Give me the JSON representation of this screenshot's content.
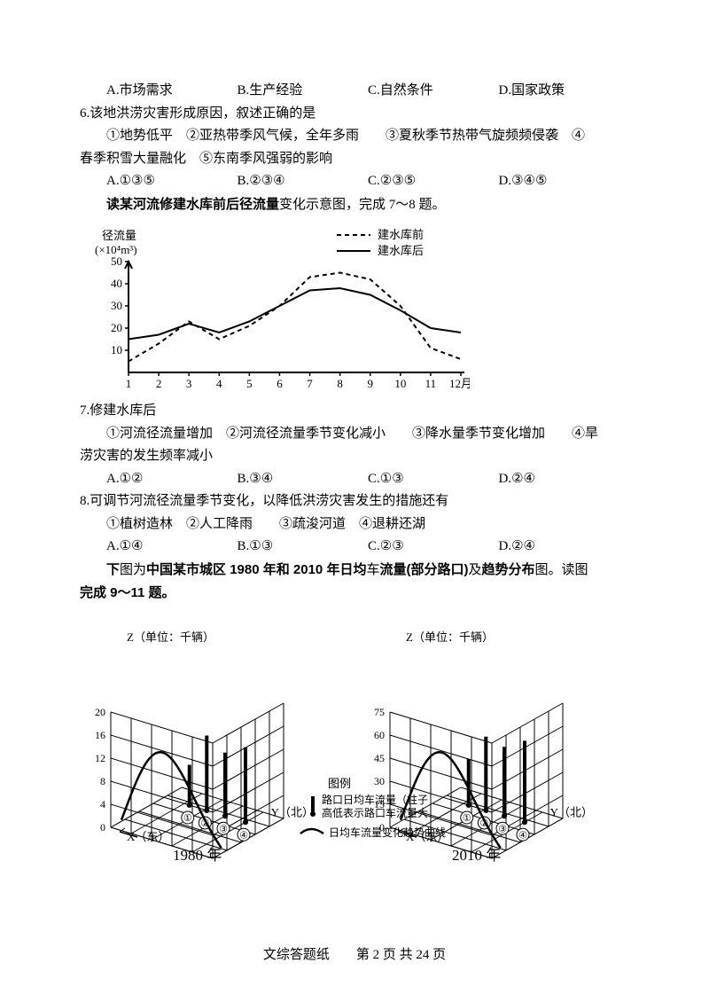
{
  "q5": {
    "choices": [
      "A.市场需求",
      "B.生产经验",
      "C.自然条件",
      "D.国家政策"
    ]
  },
  "q6": {
    "stem": "6.该地洪涝灾害形成原因，叙述正确的是",
    "items_line1": "①地势低平　②亚热带季风气候，全年多雨　　③夏秋季节热带气旋频频侵袭　④",
    "items_line2": "春季积雪大量融化　⑤东南季风强弱的影响",
    "choices": [
      "A.①③⑤",
      "B.②③④",
      "C.②③⑤",
      "D.③④⑤"
    ]
  },
  "lead1": {
    "pre": "读",
    "bold": "某河流修建水库前后径流量",
    "post": "变化示意图，完成 7～8 题。"
  },
  "chart1": {
    "ylabel1": "径流量",
    "ylabel2": "(×10⁴m³)",
    "legend": [
      "建水库前",
      "建水库后"
    ],
    "yticks": [
      10,
      20,
      30,
      40,
      50
    ],
    "xticks": [
      1,
      2,
      3,
      4,
      5,
      6,
      7,
      8,
      9,
      10,
      11,
      "12月"
    ],
    "series_before": [
      5,
      13,
      23,
      15,
      21,
      30,
      43,
      45,
      42,
      30,
      11,
      6
    ],
    "series_after": [
      15,
      17,
      22,
      18,
      23,
      30,
      37,
      38,
      35,
      28,
      20,
      18
    ],
    "colors": {
      "axis": "#000000",
      "bg": "#ffffff"
    },
    "styles": {
      "before_dash": "5,4",
      "line_width": 2,
      "font_size": 13
    }
  },
  "q7": {
    "stem": "7.修建水库后",
    "items_line1": "①河流径流量增加　②河流径流量季节变化减小　　③降水量季节变化增加　　④旱",
    "items_line2": "涝灾害的发生频率减小",
    "choices": [
      "A.①②",
      "B.③④",
      "C.①③",
      "D.②④"
    ]
  },
  "q8": {
    "stem": "8.可调节河流径流量季节变化，以降低洪涝灾害发生的措施还有",
    "items": "①植树造林　②人工降雨　　③疏浚河道　④退耕还湖",
    "choices": [
      "A.①④",
      "B.①③",
      "C.②③",
      "D.②④"
    ]
  },
  "lead2": {
    "pre": "下",
    "mid1": "图为",
    "bold1": "中国某市城区 1980 年和 2010 年日均",
    "mid2": "车",
    "bold2": "流量(部分路口)",
    "mid3": "及",
    "bold3": "趋势分布",
    "post": "图。读图",
    "line2": "完成 9～11 题。"
  },
  "chart2": {
    "zlabel": "Z（单位：千辆）",
    "xlabel": "X（东）",
    "left": {
      "year": "1980 年",
      "zticks": [
        0,
        4,
        8,
        12,
        16,
        20
      ],
      "bars": [
        7,
        13,
        11,
        13
      ]
    },
    "right": {
      "year": "2010 年",
      "zticks": [
        0,
        15,
        30,
        45,
        60,
        75
      ],
      "bars": [
        30,
        48,
        45,
        53
      ]
    },
    "legend": {
      "title": "图例",
      "l1": "路口日均车流量（柱子",
      "l2": "高低表示路口车流量大",
      "l3": "日均车流量变化趋势曲线"
    },
    "marks": [
      "①",
      "②",
      "③",
      "④"
    ],
    "ylabel": "Y（北）",
    "colors": {
      "line": "#000000",
      "fill": "#ffffff"
    }
  },
  "footer": "文综答题纸　　第 2 页 共 24 页"
}
